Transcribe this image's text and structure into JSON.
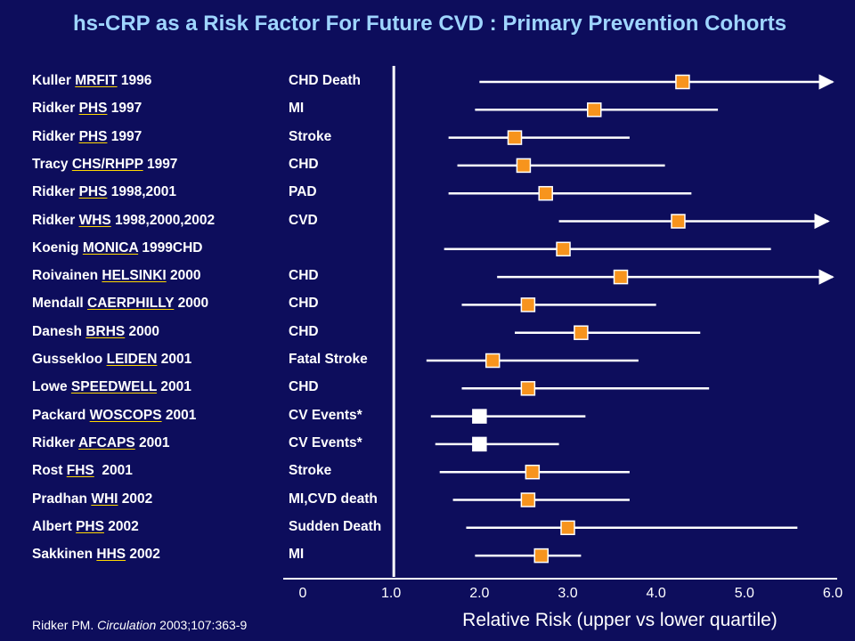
{
  "title": "hs-CRP as a Risk Factor For Future CVD : Primary Prevention Cohorts",
  "footnote": {
    "author": "Ridker PM. ",
    "journal": "Circulation",
    "rest": " 2003;107:363-9"
  },
  "colors": {
    "background": "#0d0d5c",
    "title": "#9fd5ff",
    "marker": "#f7941d",
    "marker_alt": "#ffffff",
    "line": "#ffffff"
  },
  "chart_data": {
    "type": "forest",
    "title": "hs-CRP as a Risk Factor For Future CVD : Primary Prevention Cohorts",
    "xlabel": "Relative Risk (upper vs lower quartile)",
    "xlim": [
      0,
      6.0
    ],
    "xticks": [
      "0",
      "1.0",
      "2.0",
      "3.0",
      "4.0",
      "5.0",
      "6.0"
    ],
    "reference_line": 1.0,
    "rows": [
      {
        "author": "Kuller ",
        "cohort": "MRFIT",
        "year": " 1996",
        "endpoint": "CHD Death",
        "rr": 4.3,
        "lo": 2.0,
        "hi": 6.0,
        "arrow": true,
        "marker": "orange"
      },
      {
        "author": "Ridker ",
        "cohort": "PHS",
        "year": " 1997",
        "endpoint": "MI",
        "rr": 3.3,
        "lo": 1.95,
        "hi": 4.7,
        "arrow": false,
        "marker": "orange"
      },
      {
        "author": "Ridker ",
        "cohort": "PHS",
        "year": " 1997",
        "endpoint": "Stroke",
        "rr": 2.4,
        "lo": 1.65,
        "hi": 3.7,
        "arrow": false,
        "marker": "orange"
      },
      {
        "author": "Tracy ",
        "cohort": "CHS/RHPP",
        "year": " 1997",
        "endpoint": "CHD",
        "rr": 2.5,
        "lo": 1.75,
        "hi": 4.1,
        "arrow": false,
        "marker": "orange"
      },
      {
        "author": "Ridker ",
        "cohort": "PHS",
        "year": " 1998,2001",
        "endpoint": "PAD",
        "rr": 2.75,
        "lo": 1.65,
        "hi": 4.4,
        "arrow": false,
        "marker": "orange"
      },
      {
        "author": "Ridker ",
        "cohort": "WHS",
        "year": " 1998,2000,2002",
        "endpoint": "CVD",
        "rr": 4.25,
        "lo": 2.9,
        "hi": 5.95,
        "arrow": true,
        "marker": "orange"
      },
      {
        "author": "Koenig ",
        "cohort": "MONICA",
        "year": " 1999CHD",
        "endpoint": "",
        "rr": 2.95,
        "lo": 1.6,
        "hi": 5.3,
        "arrow": false,
        "marker": "orange"
      },
      {
        "author": "Roivainen ",
        "cohort": "HELSINKI",
        "year": " 2000",
        "endpoint": "CHD",
        "rr": 3.6,
        "lo": 2.2,
        "hi": 6.0,
        "arrow": true,
        "marker": "orange"
      },
      {
        "author": "Mendall ",
        "cohort": "CAERPHILLY",
        "year": " 2000",
        "endpoint": "CHD",
        "rr": 2.55,
        "lo": 1.8,
        "hi": 4.0,
        "arrow": false,
        "marker": "orange"
      },
      {
        "author": "Danesh ",
        "cohort": "BRHS",
        "year": " 2000",
        "endpoint": "CHD",
        "rr": 3.15,
        "lo": 2.4,
        "hi": 4.5,
        "arrow": false,
        "marker": "orange"
      },
      {
        "author": "Gussekloo ",
        "cohort": "LEIDEN",
        "year": " 2001",
        "endpoint": "Fatal Stroke",
        "rr": 2.15,
        "lo": 1.4,
        "hi": 3.8,
        "arrow": false,
        "marker": "orange"
      },
      {
        "author": "Lowe ",
        "cohort": "SPEEDWELL",
        "year": " 2001",
        "endpoint": "CHD",
        "rr": 2.55,
        "lo": 1.8,
        "hi": 4.6,
        "arrow": false,
        "marker": "orange"
      },
      {
        "author": "Packard ",
        "cohort": "WOSCOPS",
        "year": " 2001",
        "endpoint": "CV Events*",
        "rr": 2.0,
        "lo": 1.45,
        "hi": 3.2,
        "arrow": false,
        "marker": "white"
      },
      {
        "author": "Ridker ",
        "cohort": "AFCAPS",
        "year": " 2001",
        "endpoint": "CV Events*",
        "rr": 2.0,
        "lo": 1.5,
        "hi": 2.9,
        "arrow": false,
        "marker": "white"
      },
      {
        "author": "Rost ",
        "cohort": "FHS",
        "year": "  2001",
        "endpoint": "Stroke",
        "rr": 2.6,
        "lo": 1.55,
        "hi": 3.7,
        "arrow": false,
        "marker": "orange"
      },
      {
        "author": "Pradhan ",
        "cohort": "WHI",
        "year": " 2002",
        "endpoint": "MI,CVD death",
        "rr": 2.55,
        "lo": 1.7,
        "hi": 3.7,
        "arrow": false,
        "marker": "orange"
      },
      {
        "author": "Albert ",
        "cohort": "PHS",
        "year": " 2002",
        "endpoint": "Sudden Death",
        "rr": 3.0,
        "lo": 1.85,
        "hi": 5.6,
        "arrow": false,
        "marker": "orange"
      },
      {
        "author": "Sakkinen ",
        "cohort": "HHS",
        "year": " 2002",
        "endpoint": "MI",
        "rr": 2.7,
        "lo": 1.95,
        "hi": 3.15,
        "arrow": false,
        "marker": "orange"
      }
    ]
  }
}
